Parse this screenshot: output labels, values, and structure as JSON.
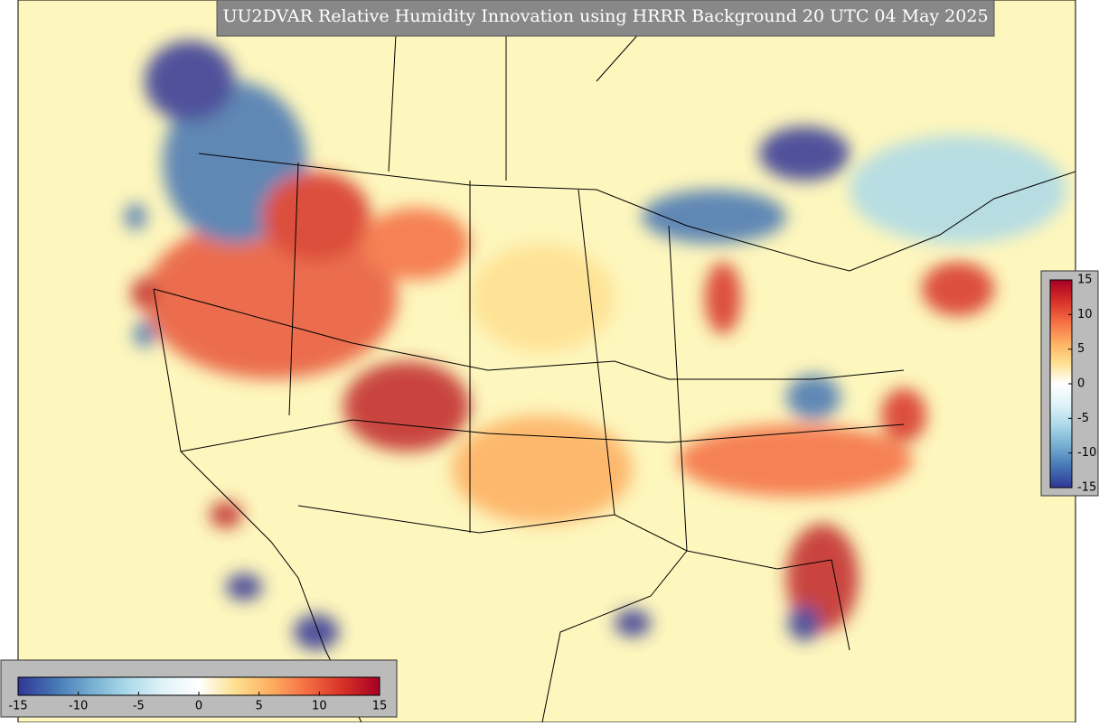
{
  "title": "UU2DVAR Relative Humidity Innovation using HRRR Background 20 UTC 04 May 2025",
  "colorbar_horizontal": {
    "lim": [
      -15,
      15
    ],
    "ticks": [
      -15,
      -10,
      -5,
      0,
      5,
      10,
      15
    ]
  },
  "colorbar_vertical": {
    "lim": [
      -15,
      15
    ],
    "ticks": [
      15,
      10,
      5,
      0,
      -5,
      -10,
      -15
    ]
  },
  "colors": [
    "#313695",
    "#4575b4",
    "#74add1",
    "#abd9e9",
    "#e0f3f8",
    "#ffffff",
    "#fee090",
    "#fdae61",
    "#f46d43",
    "#d73027",
    "#a50026"
  ]
}
